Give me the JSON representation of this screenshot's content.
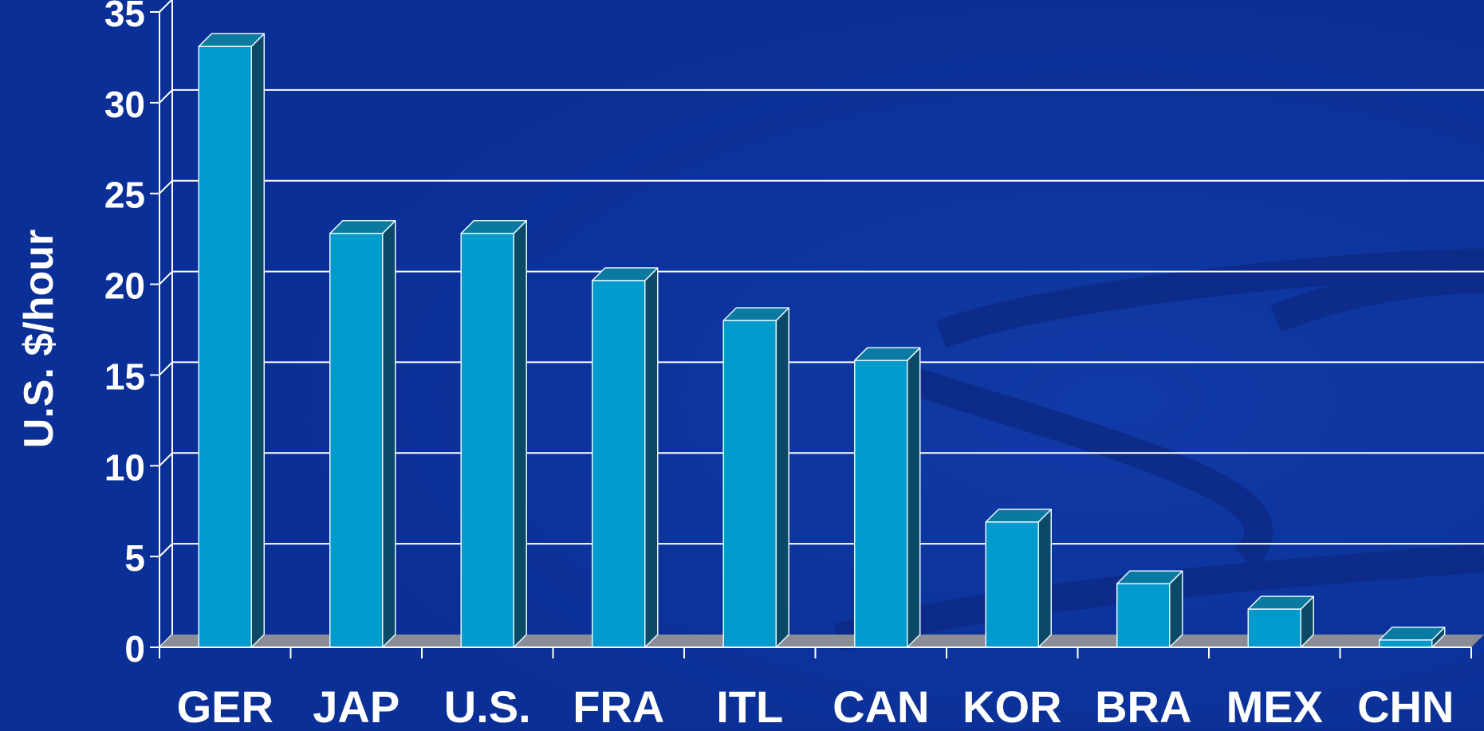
{
  "chart_data": {
    "type": "bar",
    "title": "",
    "xlabel": "",
    "ylabel": "U.S. $/hour",
    "categories": [
      "GER",
      "JAP",
      "U.S.",
      "FRA",
      "ITL",
      "CAN",
      "KOR",
      "BRA",
      "MEX",
      "CHN"
    ],
    "values": [
      33.1,
      22.8,
      22.8,
      20.2,
      18.0,
      15.8,
      6.9,
      3.5,
      2.1,
      0.4
    ],
    "ylim": [
      0,
      35
    ],
    "yticks": [
      0,
      5,
      10,
      15,
      20,
      25,
      30,
      35
    ],
    "grid": true,
    "legend": "none",
    "style": "3d-column",
    "colors": {
      "background": "#0a2f96",
      "bar_front": "#009acd",
      "bar_top": "#0b7aa0",
      "bar_side": "#0b4a66",
      "floor": "#8a8d96",
      "grid": "#ffffff",
      "text": "#ffffff"
    }
  }
}
